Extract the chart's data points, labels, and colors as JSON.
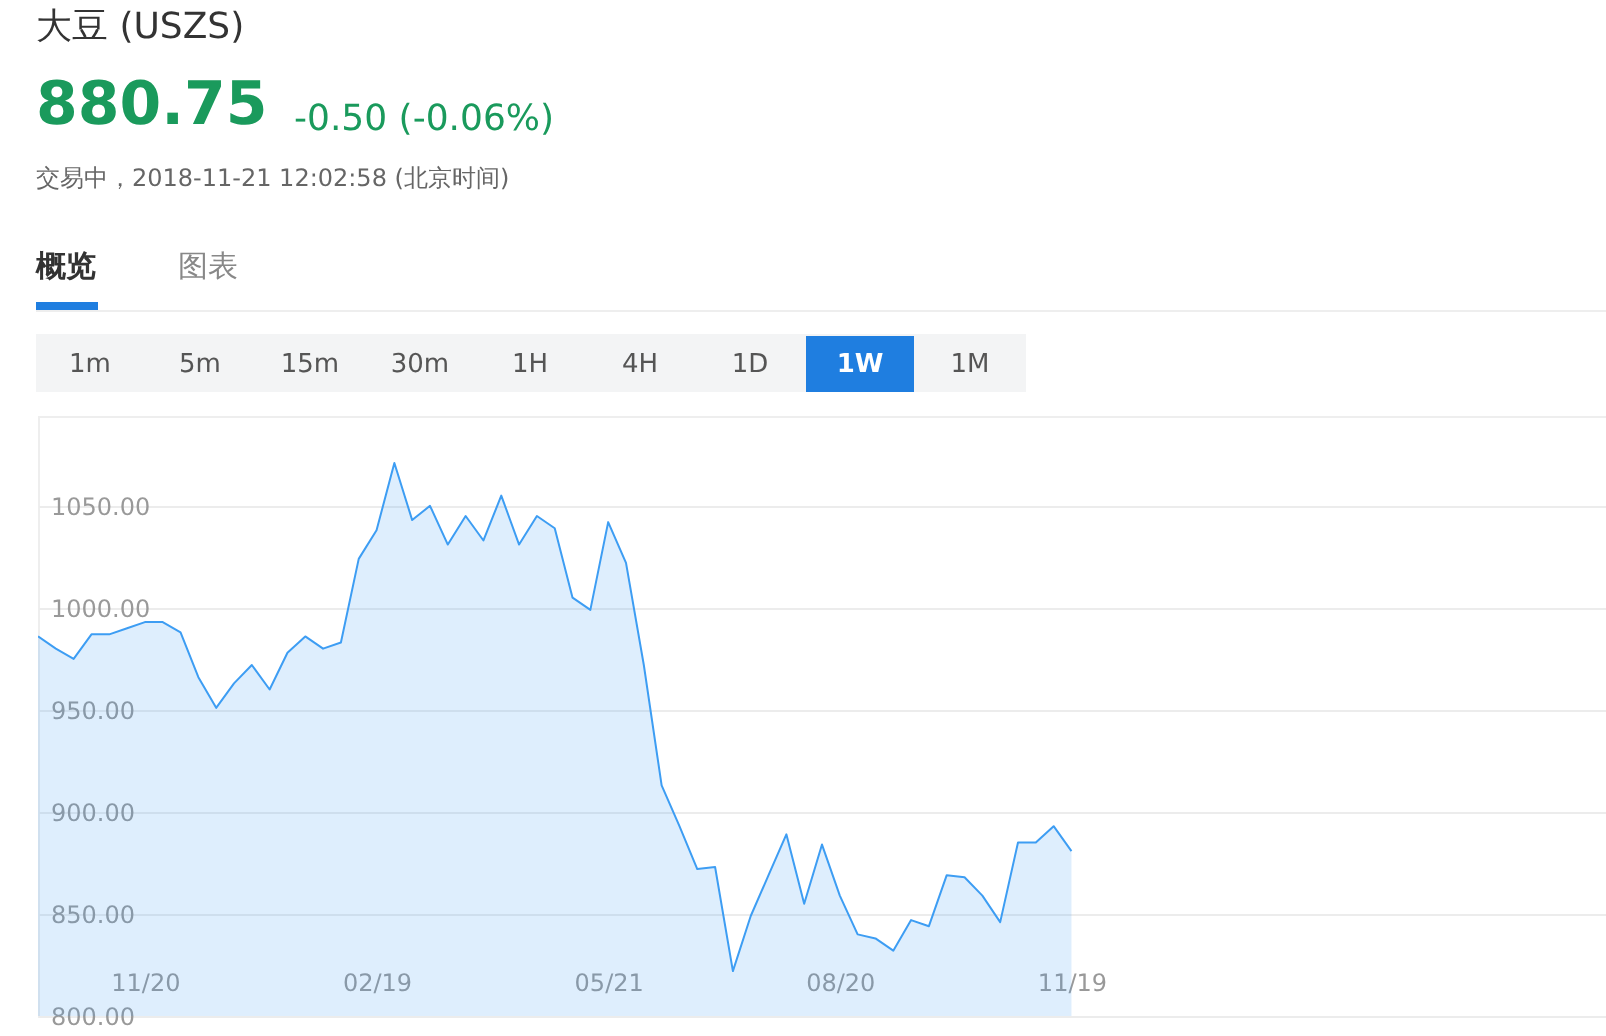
{
  "chart_data": {
    "type": "area",
    "title": "大豆 (USZS)",
    "annotations": [
      "880.75",
      "-0.50 (-0.06%)",
      "交易中，2018-11-21 12:02:58 (北京时间)",
      "概览",
      "图表",
      "1m",
      "5m",
      "15m",
      "30m",
      "1H",
      "4H",
      "1D",
      "1W",
      "1M"
    ],
    "x": [
      "2017-10-09",
      "2017-10-16",
      "2017-10-23",
      "2017-10-30",
      "2017-11-06",
      "2017-11-13",
      "2017-11-20",
      "2017-11-27",
      "2017-12-04",
      "2017-12-11",
      "2017-12-18",
      "2017-12-25",
      "2018-01-01",
      "2018-01-08",
      "2018-01-15",
      "2018-01-22",
      "2018-01-29",
      "2018-02-05",
      "2018-02-12",
      "2018-02-19",
      "2018-02-26",
      "2018-03-05",
      "2018-03-12",
      "2018-03-19",
      "2018-03-26",
      "2018-04-02",
      "2018-04-09",
      "2018-04-16",
      "2018-04-23",
      "2018-04-30",
      "2018-05-07",
      "2018-05-14",
      "2018-05-21",
      "2018-05-28",
      "2018-06-04",
      "2018-06-11",
      "2018-06-18",
      "2018-06-25",
      "2018-07-02",
      "2018-07-09",
      "2018-07-16",
      "2018-07-23",
      "2018-07-30",
      "2018-08-06",
      "2018-08-13",
      "2018-08-20",
      "2018-08-27",
      "2018-09-03",
      "2018-09-10",
      "2018-09-17",
      "2018-09-24",
      "2018-10-01",
      "2018-10-08",
      "2018-10-15",
      "2018-10-22",
      "2018-10-29",
      "2018-11-05",
      "2018-11-12",
      "2018-11-19"
    ],
    "series": [
      {
        "color": "#3d9df3",
        "values": [
          986,
          980,
          975,
          987,
          987,
          990,
          993,
          993,
          988,
          966,
          951,
          963,
          972,
          960,
          978,
          986,
          980,
          983,
          1024,
          1038,
          1071,
          1043,
          1050,
          1031,
          1045,
          1033,
          1055,
          1031,
          1045,
          1039,
          1005,
          999,
          1042,
          1022,
          972,
          913,
          893,
          872,
          873,
          822,
          849,
          869,
          889,
          855,
          884,
          859,
          840,
          838,
          832,
          847,
          844,
          869,
          868,
          859,
          846,
          885,
          885,
          893,
          880.75
        ]
      }
    ],
    "xlim": [
      "2017-10-09",
      "2019-06-17"
    ],
    "xticks": [
      {
        "value": "2017-11-20",
        "label": "11/20"
      },
      {
        "value": "2018-02-19",
        "label": "02/19"
      },
      {
        "value": "2018-05-21",
        "label": "05/21"
      },
      {
        "value": "2018-08-20",
        "label": "08/20"
      },
      {
        "value": "2018-11-19",
        "label": "11/19"
      }
    ],
    "ylim": [
      800,
      1094
    ],
    "yticks": [
      {
        "value": 800,
        "label": "800.00"
      },
      {
        "value": 850,
        "label": "850.00"
      },
      {
        "value": 900,
        "label": "900.00"
      },
      {
        "value": 950,
        "label": "950.00"
      },
      {
        "value": 1000,
        "label": "1000.00"
      },
      {
        "value": 1050,
        "label": "1050.00"
      }
    ],
    "grid": "y"
  }
}
